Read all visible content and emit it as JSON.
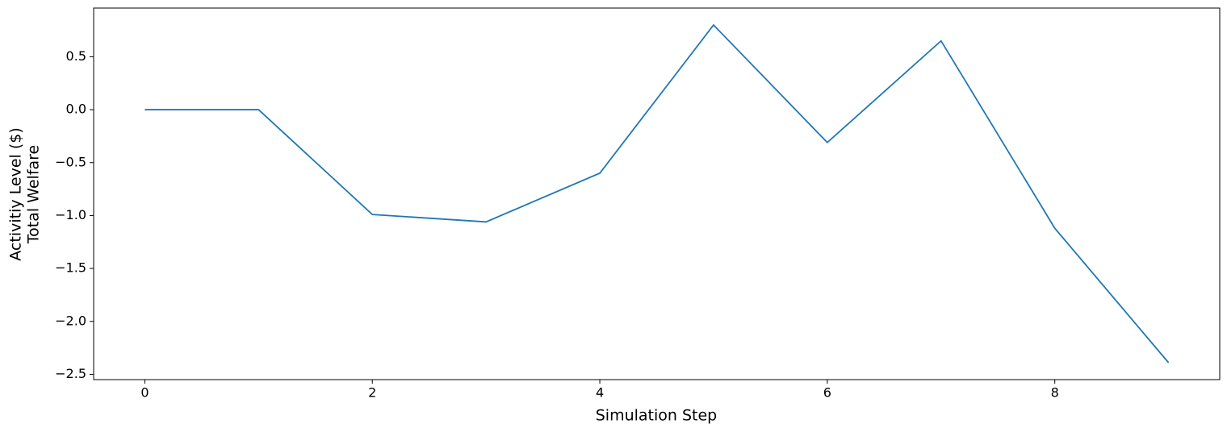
{
  "chart_data": {
    "type": "line",
    "x_label": "Simulation Step",
    "y_label": [
      "Activitiy Level ($)",
      "Total Welfare"
    ],
    "x": [
      0,
      1,
      2,
      3,
      4,
      5,
      6,
      7,
      8,
      9
    ],
    "series": [
      {
        "color": "#1f77b4",
        "values": [
          0,
          0,
          -0.99,
          -1.06,
          -0.6,
          0.8,
          -0.31,
          0.65,
          -1.12,
          -2.39
        ]
      }
    ],
    "xlim": [
      -0.45,
      9.45
    ],
    "xticks": [
      0,
      2,
      4,
      6,
      8
    ],
    "ylim": [
      -2.55,
      0.96
    ],
    "yticks": [
      {
        "value": -2.5,
        "label": "−2.5"
      },
      {
        "value": -2.0,
        "label": "−2.0"
      },
      {
        "value": -1.5,
        "label": "−1.5"
      },
      {
        "value": -1.0,
        "label": "−1.0"
      },
      {
        "value": -0.5,
        "label": "−0.5"
      },
      {
        "value": 0,
        "label": "0.0"
      },
      0.5
    ],
    "grid": false
  }
}
